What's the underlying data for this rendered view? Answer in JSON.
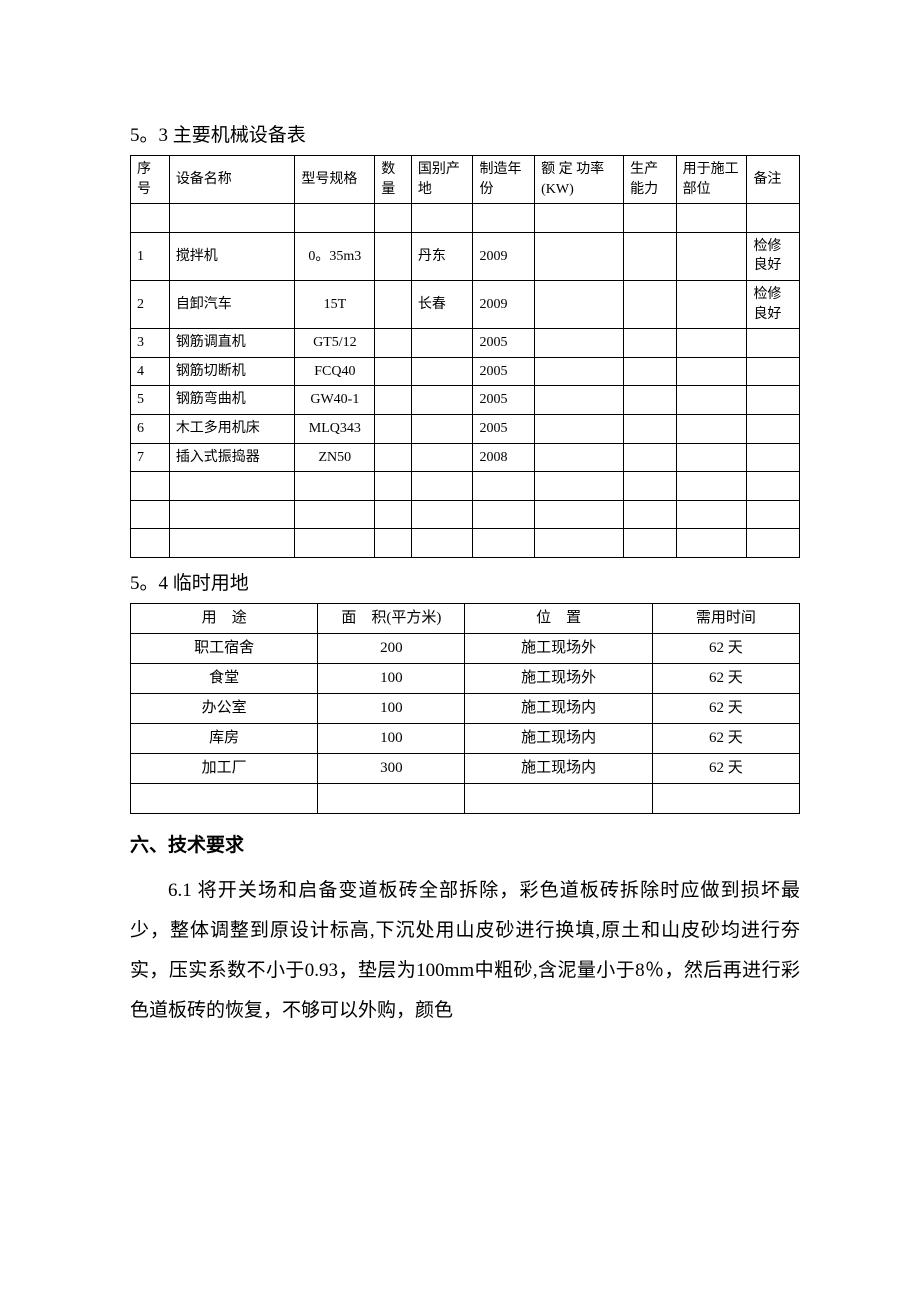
{
  "section1": {
    "heading": "5。3 主要机械设备表",
    "headers": [
      "序号",
      "设备名称",
      "型号规格",
      "数量",
      "国别产地",
      "制造年份",
      "额 定 功率(KW)",
      "生产能力",
      "用于施工部位",
      "备注"
    ],
    "rows": [
      [
        "",
        "",
        "",
        "",
        "",
        "",
        "",
        "",
        "",
        ""
      ],
      [
        "1",
        "搅拌机",
        "0。35m3",
        "",
        "丹东",
        "2009",
        "",
        "",
        "",
        "检修良好"
      ],
      [
        "2",
        "自卸汽车",
        "15T",
        "",
        "长春",
        "2009",
        "",
        "",
        "",
        "检修良好"
      ],
      [
        "3",
        "钢筋调直机",
        "GT5/12",
        "",
        "",
        "2005",
        "",
        "",
        "",
        ""
      ],
      [
        "4",
        "钢筋切断机",
        "FCQ40",
        "",
        "",
        "2005",
        "",
        "",
        "",
        ""
      ],
      [
        "5",
        "钢筋弯曲机",
        "GW40-1",
        "",
        "",
        "2005",
        "",
        "",
        "",
        ""
      ],
      [
        "6",
        "木工多用机床",
        "MLQ343",
        "",
        "",
        "2005",
        "",
        "",
        "",
        ""
      ],
      [
        "7",
        "插入式振捣器",
        "ZN50",
        "",
        "",
        "2008",
        "",
        "",
        "",
        ""
      ],
      [
        "",
        "",
        "",
        "",
        "",
        "",
        "",
        "",
        "",
        ""
      ],
      [
        "",
        "",
        "",
        "",
        "",
        "",
        "",
        "",
        "",
        ""
      ],
      [
        "",
        "",
        "",
        "",
        "",
        "",
        "",
        "",
        "",
        ""
      ]
    ]
  },
  "section2": {
    "heading": "5。4 临时用地",
    "headers": [
      "用　途",
      "面　积(平方米)",
      "位　置",
      "需用时间"
    ],
    "rows": [
      [
        "职工宿舍",
        "200",
        "施工现场外",
        "62 天"
      ],
      [
        "食堂",
        "100",
        "施工现场外",
        "62 天"
      ],
      [
        "办公室",
        "100",
        "施工现场内",
        "62 天"
      ],
      [
        "库房",
        "100",
        "施工现场内",
        "62 天"
      ],
      [
        "加工厂",
        "300",
        "施工现场内",
        "62 天"
      ],
      [
        "",
        "",
        "",
        ""
      ]
    ]
  },
  "section3": {
    "heading": "六、技术要求",
    "para": "6.1 将开关场和启备变道板砖全部拆除，彩色道板砖拆除时应做到损坏最少，整体调整到原设计标高,下沉处用山皮砂进行换填,原土和山皮砂均进行夯实，压实系数不小于0.93，垫层为100mm中粗砂,含泥量小于8％，然后再进行彩色道板砖的恢复，不够可以外购，颜色"
  },
  "style": {
    "t1_col_widths": [
      "34px",
      "110px",
      "70px",
      "32px",
      "54px",
      "54px",
      "78px",
      "46px",
      "62px",
      "46px"
    ],
    "t2_col_widths": [
      "28%",
      "22%",
      "28%",
      "22%"
    ]
  }
}
